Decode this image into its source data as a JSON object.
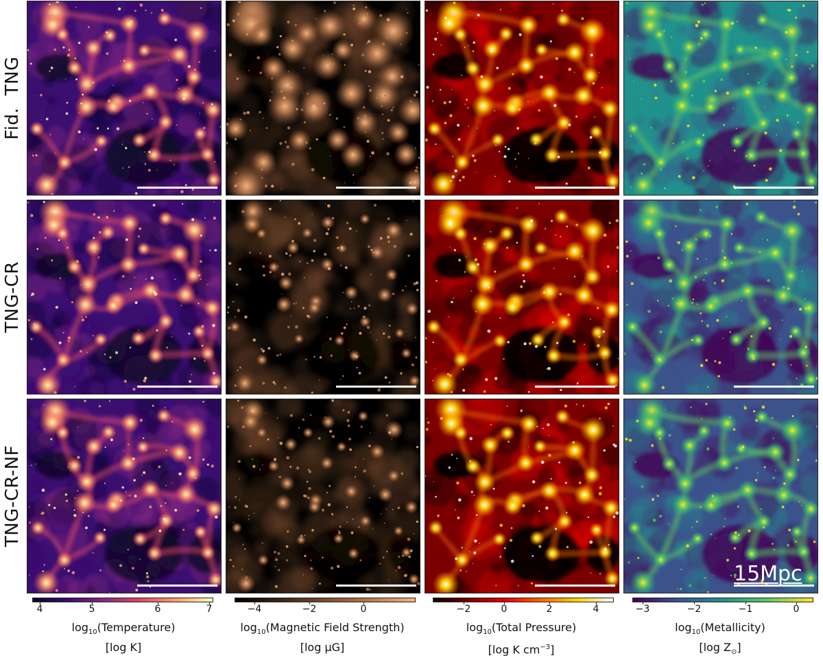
{
  "rows": [
    {
      "label": "Fid.  TNG"
    },
    {
      "label": "TNG-CR"
    },
    {
      "label": "TNG-CR-NF"
    }
  ],
  "columns": [
    {
      "quantity": "Temperature",
      "colormap": "inferno",
      "colors": [
        "#0b0724",
        "#3b0f70",
        "#8c2981",
        "#de4968",
        "#fe9f6d",
        "#fcfdbf"
      ],
      "ticks": [
        "4",
        "5",
        "6",
        "7"
      ],
      "label_prefix": "log",
      "label_sub": "10",
      "label_main": "(Temperature)",
      "unit_html": "[log K]"
    },
    {
      "quantity": "Magnetic Field Strength",
      "colormap": "copper",
      "colors": [
        "#000000",
        "#3a2414",
        "#7a4c31",
        "#b87a4f",
        "#f2b27d"
      ],
      "ticks": [
        "−4",
        "−2",
        "0"
      ],
      "label_prefix": "log",
      "label_sub": "10",
      "label_main": "(Magnetic Field Strength)",
      "unit_html": "[log μG]"
    },
    {
      "quantity": "Total Pressure",
      "colormap": "hot",
      "colors": [
        "#000000",
        "#7a0000",
        "#e60000",
        "#ff6a00",
        "#ffd400",
        "#ffffff"
      ],
      "ticks": [
        "−2",
        "0",
        "2",
        "4"
      ],
      "label_prefix": "log",
      "label_sub": "10",
      "label_main": "(Total Pressure)",
      "unit_pre": "[log K cm",
      "unit_sup": "−3",
      "unit_post": "]"
    },
    {
      "quantity": "Metallicity",
      "colormap": "viridis",
      "colors": [
        "#440154",
        "#3b528b",
        "#21918c",
        "#5ec962",
        "#fde725"
      ],
      "ticks": [
        "−3",
        "−2",
        "−1",
        "0"
      ],
      "label_prefix": "log",
      "label_sub": "10",
      "label_main": "(Metallicity)",
      "unit_pre": "[log Z",
      "unit_sub": "⊙",
      "unit_post": "]"
    }
  ],
  "scale_label": "15Mpc"
}
